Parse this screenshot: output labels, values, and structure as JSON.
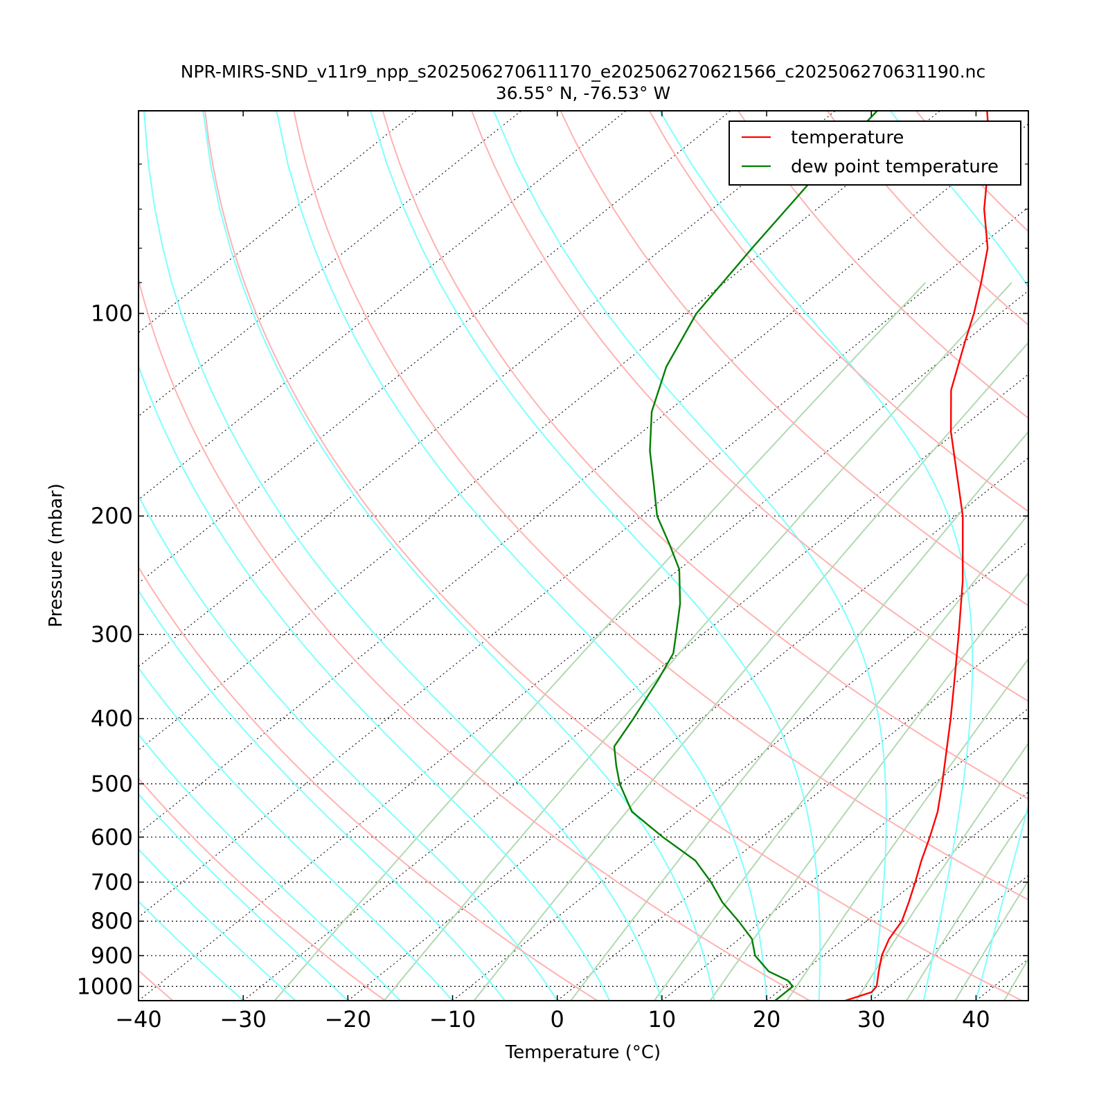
{
  "chart_data": {
    "type": "line",
    "subtype": "skew-T log-P diagram",
    "title": "NPR-MIRS-SND_v11r9_npp_s202506270611170_e202506270621566_c202506270631190.nc",
    "subtitle": "36.55° N, -76.53° W",
    "xlabel": "Temperature (°C)",
    "ylabel": "Pressure (mbar)",
    "xlim": [
      -40,
      45
    ],
    "ylim": [
      1050,
      50
    ],
    "y_scale": "log",
    "x_ticks": [
      "−40",
      "−30",
      "−20",
      "−10",
      "0",
      "10",
      "20",
      "30",
      "40"
    ],
    "y_ticks": [
      {
        "value": 100,
        "label": "100"
      },
      {
        "value": 200,
        "label": "200"
      },
      {
        "value": 300,
        "label": "300"
      },
      {
        "value": 400,
        "label": "400"
      },
      {
        "value": 500,
        "label": "500"
      },
      {
        "value": 600,
        "label": "600"
      },
      {
        "value": 700,
        "label": "700"
      },
      {
        "value": 800,
        "label": "800"
      },
      {
        "value": 900,
        "label": "900"
      },
      {
        "value": 1000,
        "label": "1000"
      }
    ],
    "legend_position": "top-right",
    "grid": "isobars dotted; skewed isotherms dotted",
    "colors": {
      "temperature": "#ff0000",
      "dewpoint": "#007f00",
      "dry_adiabat": "#ffb2b2",
      "moist_adiabat": "#7fffff",
      "mixing_ratio": "#b2d8b2"
    },
    "series": [
      {
        "name": "temperature",
        "key": "temperature",
        "points": [
          {
            "p": 1050,
            "t": 27.5
          },
          {
            "p": 1020,
            "t": 29.0
          },
          {
            "p": 1000,
            "t": 28.8
          },
          {
            "p": 950,
            "t": 27.2
          },
          {
            "p": 900,
            "t": 25.6
          },
          {
            "p": 850,
            "t": 24.3
          },
          {
            "p": 800,
            "t": 23.4
          },
          {
            "p": 750,
            "t": 21.8
          },
          {
            "p": 700,
            "t": 20.0
          },
          {
            "p": 650,
            "t": 18.0
          },
          {
            "p": 600,
            "t": 16.0
          },
          {
            "p": 550,
            "t": 13.7
          },
          {
            "p": 500,
            "t": 10.8
          },
          {
            "p": 450,
            "t": 7.5
          },
          {
            "p": 400,
            "t": 3.8
          },
          {
            "p": 350,
            "t": -0.5
          },
          {
            "p": 300,
            "t": -5.5
          },
          {
            "p": 250,
            "t": -11.5
          },
          {
            "p": 200,
            "t": -19.3
          },
          {
            "p": 175,
            "t": -24.5
          },
          {
            "p": 150,
            "t": -30.5
          },
          {
            "p": 130,
            "t": -35.5
          },
          {
            "p": 110,
            "t": -40.0
          },
          {
            "p": 100,
            "t": -42.5
          },
          {
            "p": 90,
            "t": -45.5
          },
          {
            "p": 80,
            "t": -49.0
          },
          {
            "p": 70,
            "t": -54.0
          },
          {
            "p": 60,
            "t": -59.0
          },
          {
            "p": 55,
            "t": -62.0
          },
          {
            "p": 50,
            "t": -65.5
          }
        ]
      },
      {
        "name": "dew point temperature",
        "key": "dewpoint",
        "points": [
          {
            "p": 1050,
            "t": 20.8
          },
          {
            "p": 1000,
            "t": 20.8
          },
          {
            "p": 980,
            "t": 19.6
          },
          {
            "p": 950,
            "t": 16.7
          },
          {
            "p": 900,
            "t": 13.5
          },
          {
            "p": 850,
            "t": 11.2
          },
          {
            "p": 800,
            "t": 7.8
          },
          {
            "p": 750,
            "t": 4.0
          },
          {
            "p": 700,
            "t": 0.5
          },
          {
            "p": 650,
            "t": -3.6
          },
          {
            "p": 600,
            "t": -9.5
          },
          {
            "p": 550,
            "t": -15.5
          },
          {
            "p": 500,
            "t": -20.0
          },
          {
            "p": 470,
            "t": -22.5
          },
          {
            "p": 440,
            "t": -25.0
          },
          {
            "p": 400,
            "t": -26.5
          },
          {
            "p": 350,
            "t": -28.8
          },
          {
            "p": 320,
            "t": -30.5
          },
          {
            "p": 300,
            "t": -32.5
          },
          {
            "p": 270,
            "t": -35.8
          },
          {
            "p": 240,
            "t": -40.0
          },
          {
            "p": 220,
            "t": -44.0
          },
          {
            "p": 200,
            "t": -48.5
          },
          {
            "p": 180,
            "t": -52.5
          },
          {
            "p": 160,
            "t": -57.0
          },
          {
            "p": 140,
            "t": -61.5
          },
          {
            "p": 120,
            "t": -65.5
          },
          {
            "p": 100,
            "t": -69.0
          },
          {
            "p": 80,
            "t": -71.5
          },
          {
            "p": 60,
            "t": -74.5
          },
          {
            "p": 50,
            "t": -76.0
          }
        ]
      }
    ]
  }
}
